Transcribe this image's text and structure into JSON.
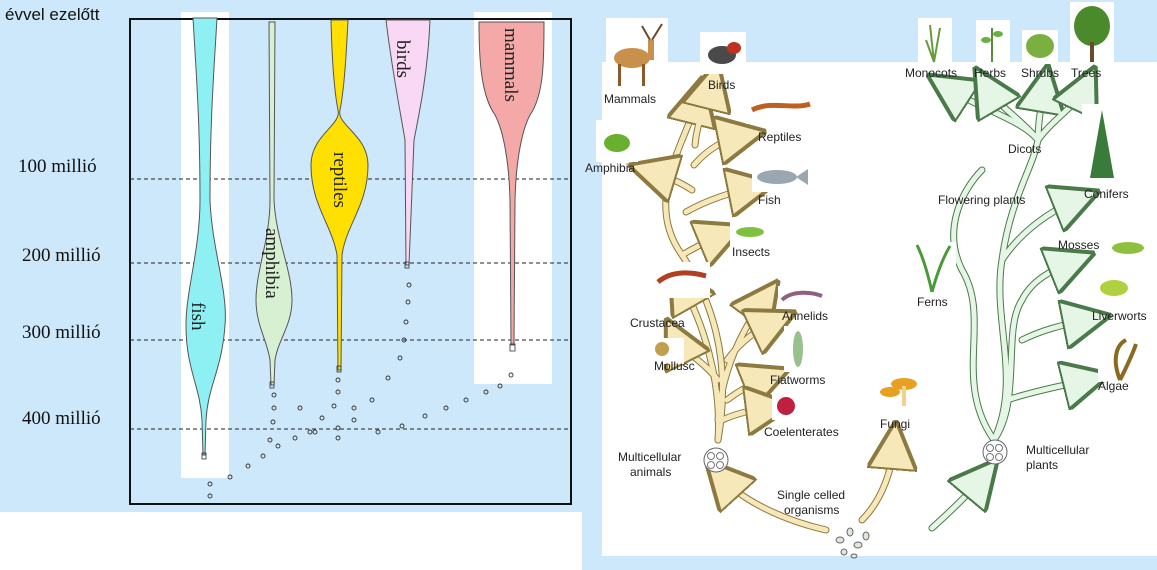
{
  "left_chart": {
    "axis_title": "évvel ezelőtt",
    "ticks": [
      {
        "label": "100 millió"
      },
      {
        "label": "200 millió"
      },
      {
        "label": "300 millió"
      },
      {
        "label": "400 millió"
      }
    ],
    "clades": [
      {
        "label": "fish",
        "color": "#8ff0f4"
      },
      {
        "label": "amphibia",
        "color": "#d8f0d2"
      },
      {
        "label": "reptiles",
        "color": "#ffe000"
      },
      {
        "label": "birds",
        "color": "#f8d8f4"
      },
      {
        "label": "mammals",
        "color": "#f4a8a8"
      }
    ]
  },
  "animal_tree": {
    "labels": {
      "mammals": "Mammals",
      "birds": "Birds",
      "reptiles": "Reptiles",
      "amphibia": "Amphibia",
      "fish": "Fish",
      "insects": "Insects",
      "crustacea": "Crustacea",
      "annelids": "Annelids",
      "mollusc": "Mollusc",
      "flatworms": "Flatworms",
      "coelenterates": "Coelenterates",
      "multicellular_animals_1": "Multicellular",
      "multicellular_animals_2": "animals"
    },
    "branch_color": "#f6e8b8"
  },
  "plant_tree": {
    "labels": {
      "monocots": "Monocots",
      "herbs": "Herbs",
      "shrubs": "Shrubs",
      "trees": "Trees",
      "dicots": "Dicots",
      "conifers": "Conifers",
      "flowering_plants": "Flowering plants",
      "mosses": "Mosses",
      "ferns": "Ferns",
      "liverworts": "Liverworts",
      "algae": "Algae",
      "multicellular_plants_1": "Multicellular",
      "multicellular_plants_2": "plants",
      "fungi": "Fungi"
    },
    "branch_color": "#e6f6e6"
  },
  "root": {
    "single_celled_1": "Single celled",
    "single_celled_2": "organisms"
  }
}
